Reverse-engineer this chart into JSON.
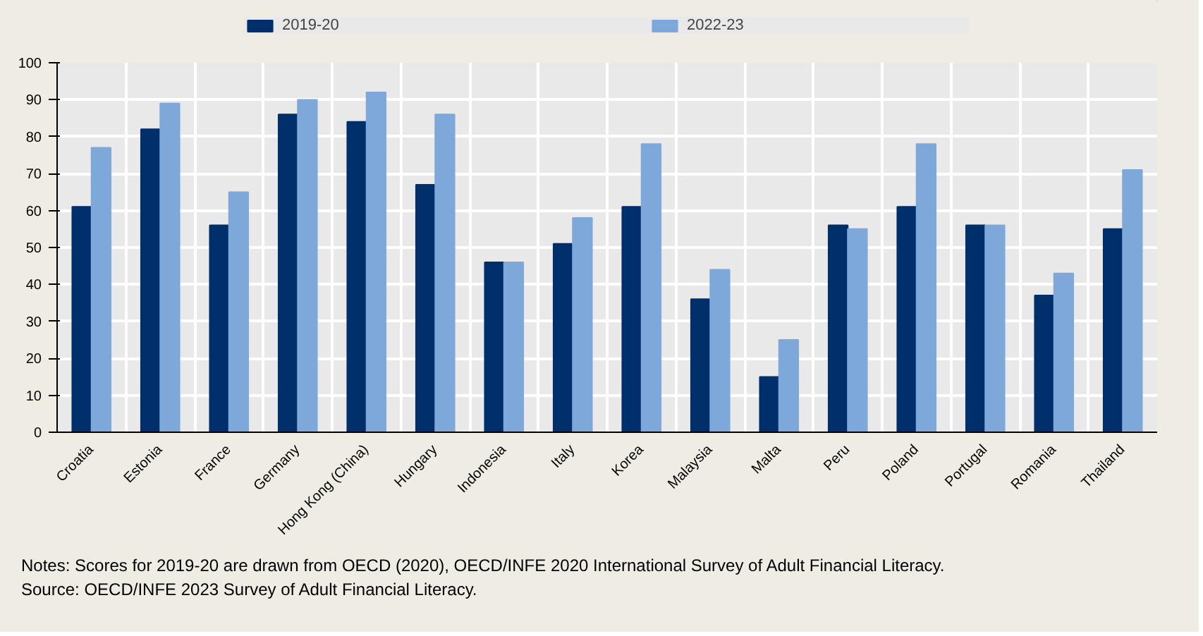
{
  "chart_data": {
    "type": "bar",
    "categories": [
      "Croatia",
      "Estonia",
      "France",
      "Germany",
      "Hong Kong (China)",
      "Hungary",
      "Indonesia",
      "Italy",
      "Korea",
      "Malaysia",
      "Malta",
      "Peru",
      "Poland",
      "Portugal",
      "Romania",
      "Thailand"
    ],
    "series": [
      {
        "name": "2019-20",
        "color": "#002f6c",
        "values": [
          61,
          82,
          56,
          86,
          84,
          67,
          46,
          51,
          61,
          36,
          15,
          56,
          61,
          56,
          37,
          55
        ]
      },
      {
        "name": "2022-23",
        "color": "#7fa8da",
        "values": [
          77,
          89,
          65,
          90,
          92,
          86,
          46,
          58,
          78,
          44,
          25,
          55,
          78,
          56,
          43,
          71
        ]
      }
    ],
    "ylim": [
      0,
      100
    ],
    "yticks": [
      0,
      10,
      20,
      30,
      40,
      50,
      60,
      70,
      80,
      90,
      100
    ],
    "grid": true,
    "legend": "top",
    "annotations": [
      "Notes: Scores for 2019-20 are drawn from OECD (2020), OECD/INFE 2020 International Survey of Adult Financial Literacy.",
      "Source: OECD/INFE 2023 Survey of Adult Financial Literacy."
    ]
  }
}
